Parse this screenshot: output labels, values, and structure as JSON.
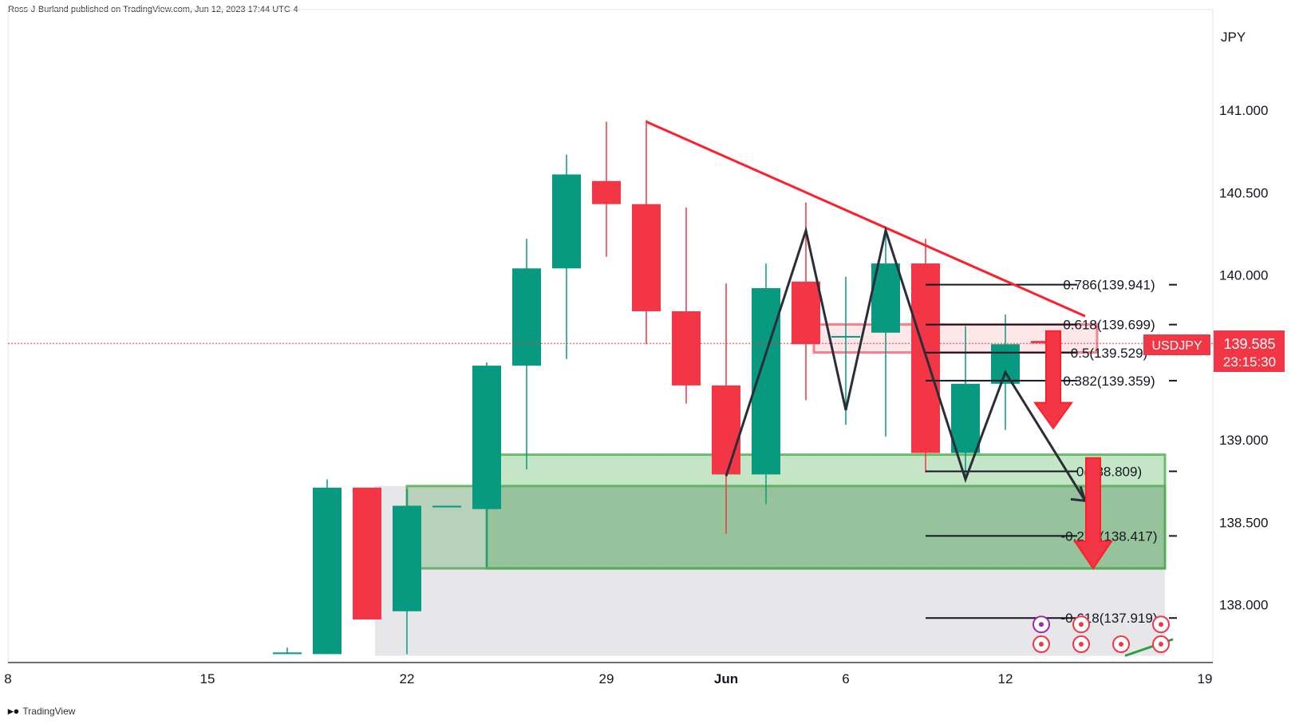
{
  "header": {
    "attribution": "Ross-J-Burland published on TradingView.com, Jun 12, 2023 17:44 UTC-4"
  },
  "footer": {
    "logo_text": "TradingView"
  },
  "chart_data": {
    "type": "candlestick",
    "symbol": "USDJPY",
    "currency_label": "JPY",
    "last_price": "139.585",
    "countdown": "23:15:30",
    "ylim": [
      137.69,
      141.5
    ],
    "x_ticks": [
      {
        "label": "8",
        "x": 0
      },
      {
        "label": "15",
        "x": 5
      },
      {
        "label": "22",
        "x": 10
      },
      {
        "label": "29",
        "x": 15
      },
      {
        "label": "Jun",
        "x": 18
      },
      {
        "label": "6",
        "x": 21
      },
      {
        "label": "12",
        "x": 25
      },
      {
        "label": "19",
        "x": 30
      }
    ],
    "y_ticks": [
      "141.000",
      "140.500",
      "140.000",
      "139.000",
      "138.500",
      "138.000"
    ],
    "y_tick_values": [
      141.0,
      140.5,
      140.0,
      139.0,
      138.5,
      138.0
    ],
    "colors": {
      "up": "#089981",
      "down": "#f23645",
      "trendline": "#ff1f2b",
      "zone": "#4caf50",
      "zigzag": "#2a2e39"
    },
    "candles": [
      {
        "x": 7,
        "o": 137.71,
        "h": 137.74,
        "l": 137.7,
        "c": 137.71
      },
      {
        "x": 8,
        "o": 137.7,
        "h": 138.76,
        "l": 137.7,
        "c": 138.71
      },
      {
        "x": 9,
        "o": 138.71,
        "h": 138.71,
        "l": 137.91,
        "c": 137.91
      },
      {
        "x": 10,
        "o": 137.96,
        "h": 138.7,
        "l": 137.7,
        "c": 138.6
      },
      {
        "x": 11,
        "o": 138.6,
        "h": 138.6,
        "l": 138.6,
        "c": 138.6
      },
      {
        "x": 12,
        "o": 138.58,
        "h": 139.47,
        "l": 138.23,
        "c": 139.45
      },
      {
        "x": 13,
        "o": 139.45,
        "h": 140.22,
        "l": 138.82,
        "c": 140.04
      },
      {
        "x": 14,
        "o": 140.04,
        "h": 140.73,
        "l": 139.49,
        "c": 140.61
      },
      {
        "x": 15,
        "o": 140.57,
        "h": 140.93,
        "l": 140.11,
        "c": 140.43
      },
      {
        "x": 16,
        "o": 140.43,
        "h": 140.94,
        "l": 139.58,
        "c": 139.78
      },
      {
        "x": 17,
        "o": 139.78,
        "h": 140.41,
        "l": 139.22,
        "c": 139.33
      },
      {
        "x": 18,
        "o": 139.33,
        "h": 139.95,
        "l": 138.43,
        "c": 138.79
      },
      {
        "x": 19,
        "o": 138.79,
        "h": 140.07,
        "l": 138.61,
        "c": 139.92
      },
      {
        "x": 20,
        "o": 139.96,
        "h": 140.44,
        "l": 139.24,
        "c": 139.58
      },
      {
        "x": 21,
        "o": 139.63,
        "h": 139.99,
        "l": 139.09,
        "c": 139.63
      },
      {
        "x": 22,
        "o": 139.65,
        "h": 140.28,
        "l": 139.02,
        "c": 140.07
      },
      {
        "x": 23,
        "o": 140.07,
        "h": 140.22,
        "l": 138.8,
        "c": 138.92
      },
      {
        "x": 24,
        "o": 138.92,
        "h": 139.69,
        "l": 138.78,
        "c": 139.34
      },
      {
        "x": 25,
        "o": 139.34,
        "h": 139.76,
        "l": 139.06,
        "c": 139.58
      },
      {
        "x": 26,
        "o": 139.6,
        "h": 139.6,
        "l": 139.58,
        "c": 139.585
      }
    ],
    "trendline": [
      {
        "x": 16,
        "y": 140.93
      },
      {
        "x": 27,
        "y": 139.75
      }
    ],
    "zigzag": [
      {
        "x": 18,
        "y": 138.78
      },
      {
        "x": 20,
        "y": 140.27
      },
      {
        "x": 21,
        "y": 139.18
      },
      {
        "x": 22,
        "y": 140.27
      },
      {
        "x": 24,
        "y": 138.76
      },
      {
        "x": 25,
        "y": 139.41
      },
      {
        "x": 27,
        "y": 138.63
      }
    ],
    "fib_levels": [
      {
        "label": "0.786(139.941)",
        "value": 139.941
      },
      {
        "label": "0.618(139.699)",
        "value": 139.699
      },
      {
        "label": "0.5(139.529)",
        "value": 139.529
      },
      {
        "label": "0.382(139.359)",
        "value": 139.359
      },
      {
        "label": "0(138.809)",
        "value": 138.809
      },
      {
        "label": "-0.272(138.417)",
        "value": 138.417
      },
      {
        "label": "-0.618(137.919)",
        "value": 137.919
      }
    ],
    "zones": [
      {
        "y_top": 138.91,
        "y_bottom": 138.22,
        "color": "green"
      },
      {
        "y_top": 138.72,
        "y_bottom": 138.22,
        "color": "green"
      },
      {
        "y_top": 138.72,
        "y_bottom": 137.69,
        "color": "grey"
      },
      {
        "y_top": 139.7,
        "y_bottom": 139.53,
        "color": "red"
      }
    ]
  }
}
